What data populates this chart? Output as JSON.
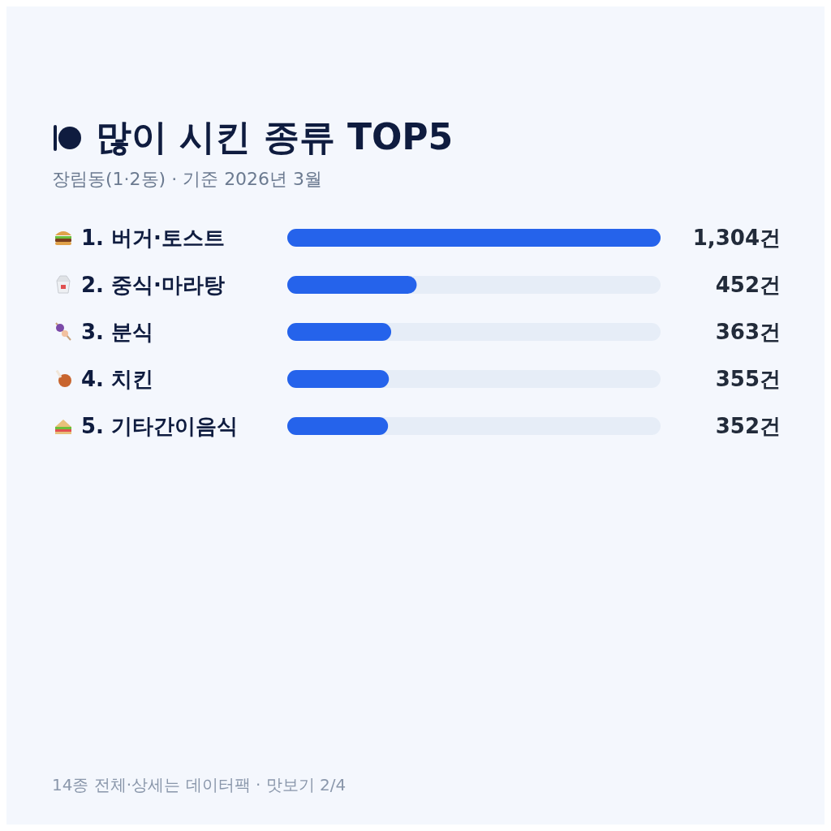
{
  "chart_data": {
    "type": "bar",
    "orientation": "horizontal",
    "title": "많이 시킨 종류 TOP5",
    "subtitle": "장림동(1·2동) · 기준 2026년 3월",
    "categories": [
      "1. 버거·토스트",
      "2. 중식·마라탕",
      "3. 분식",
      "4. 치킨",
      "5. 기타간이음식"
    ],
    "values": [
      1304,
      452,
      363,
      355,
      352
    ],
    "value_labels": [
      "1,304건",
      "452건",
      "363건",
      "355건",
      "352건"
    ],
    "color": "#2563eb",
    "annotations": [
      "14종 전체·상세는 데이터팩 · 맛보기 2/4"
    ]
  }
}
